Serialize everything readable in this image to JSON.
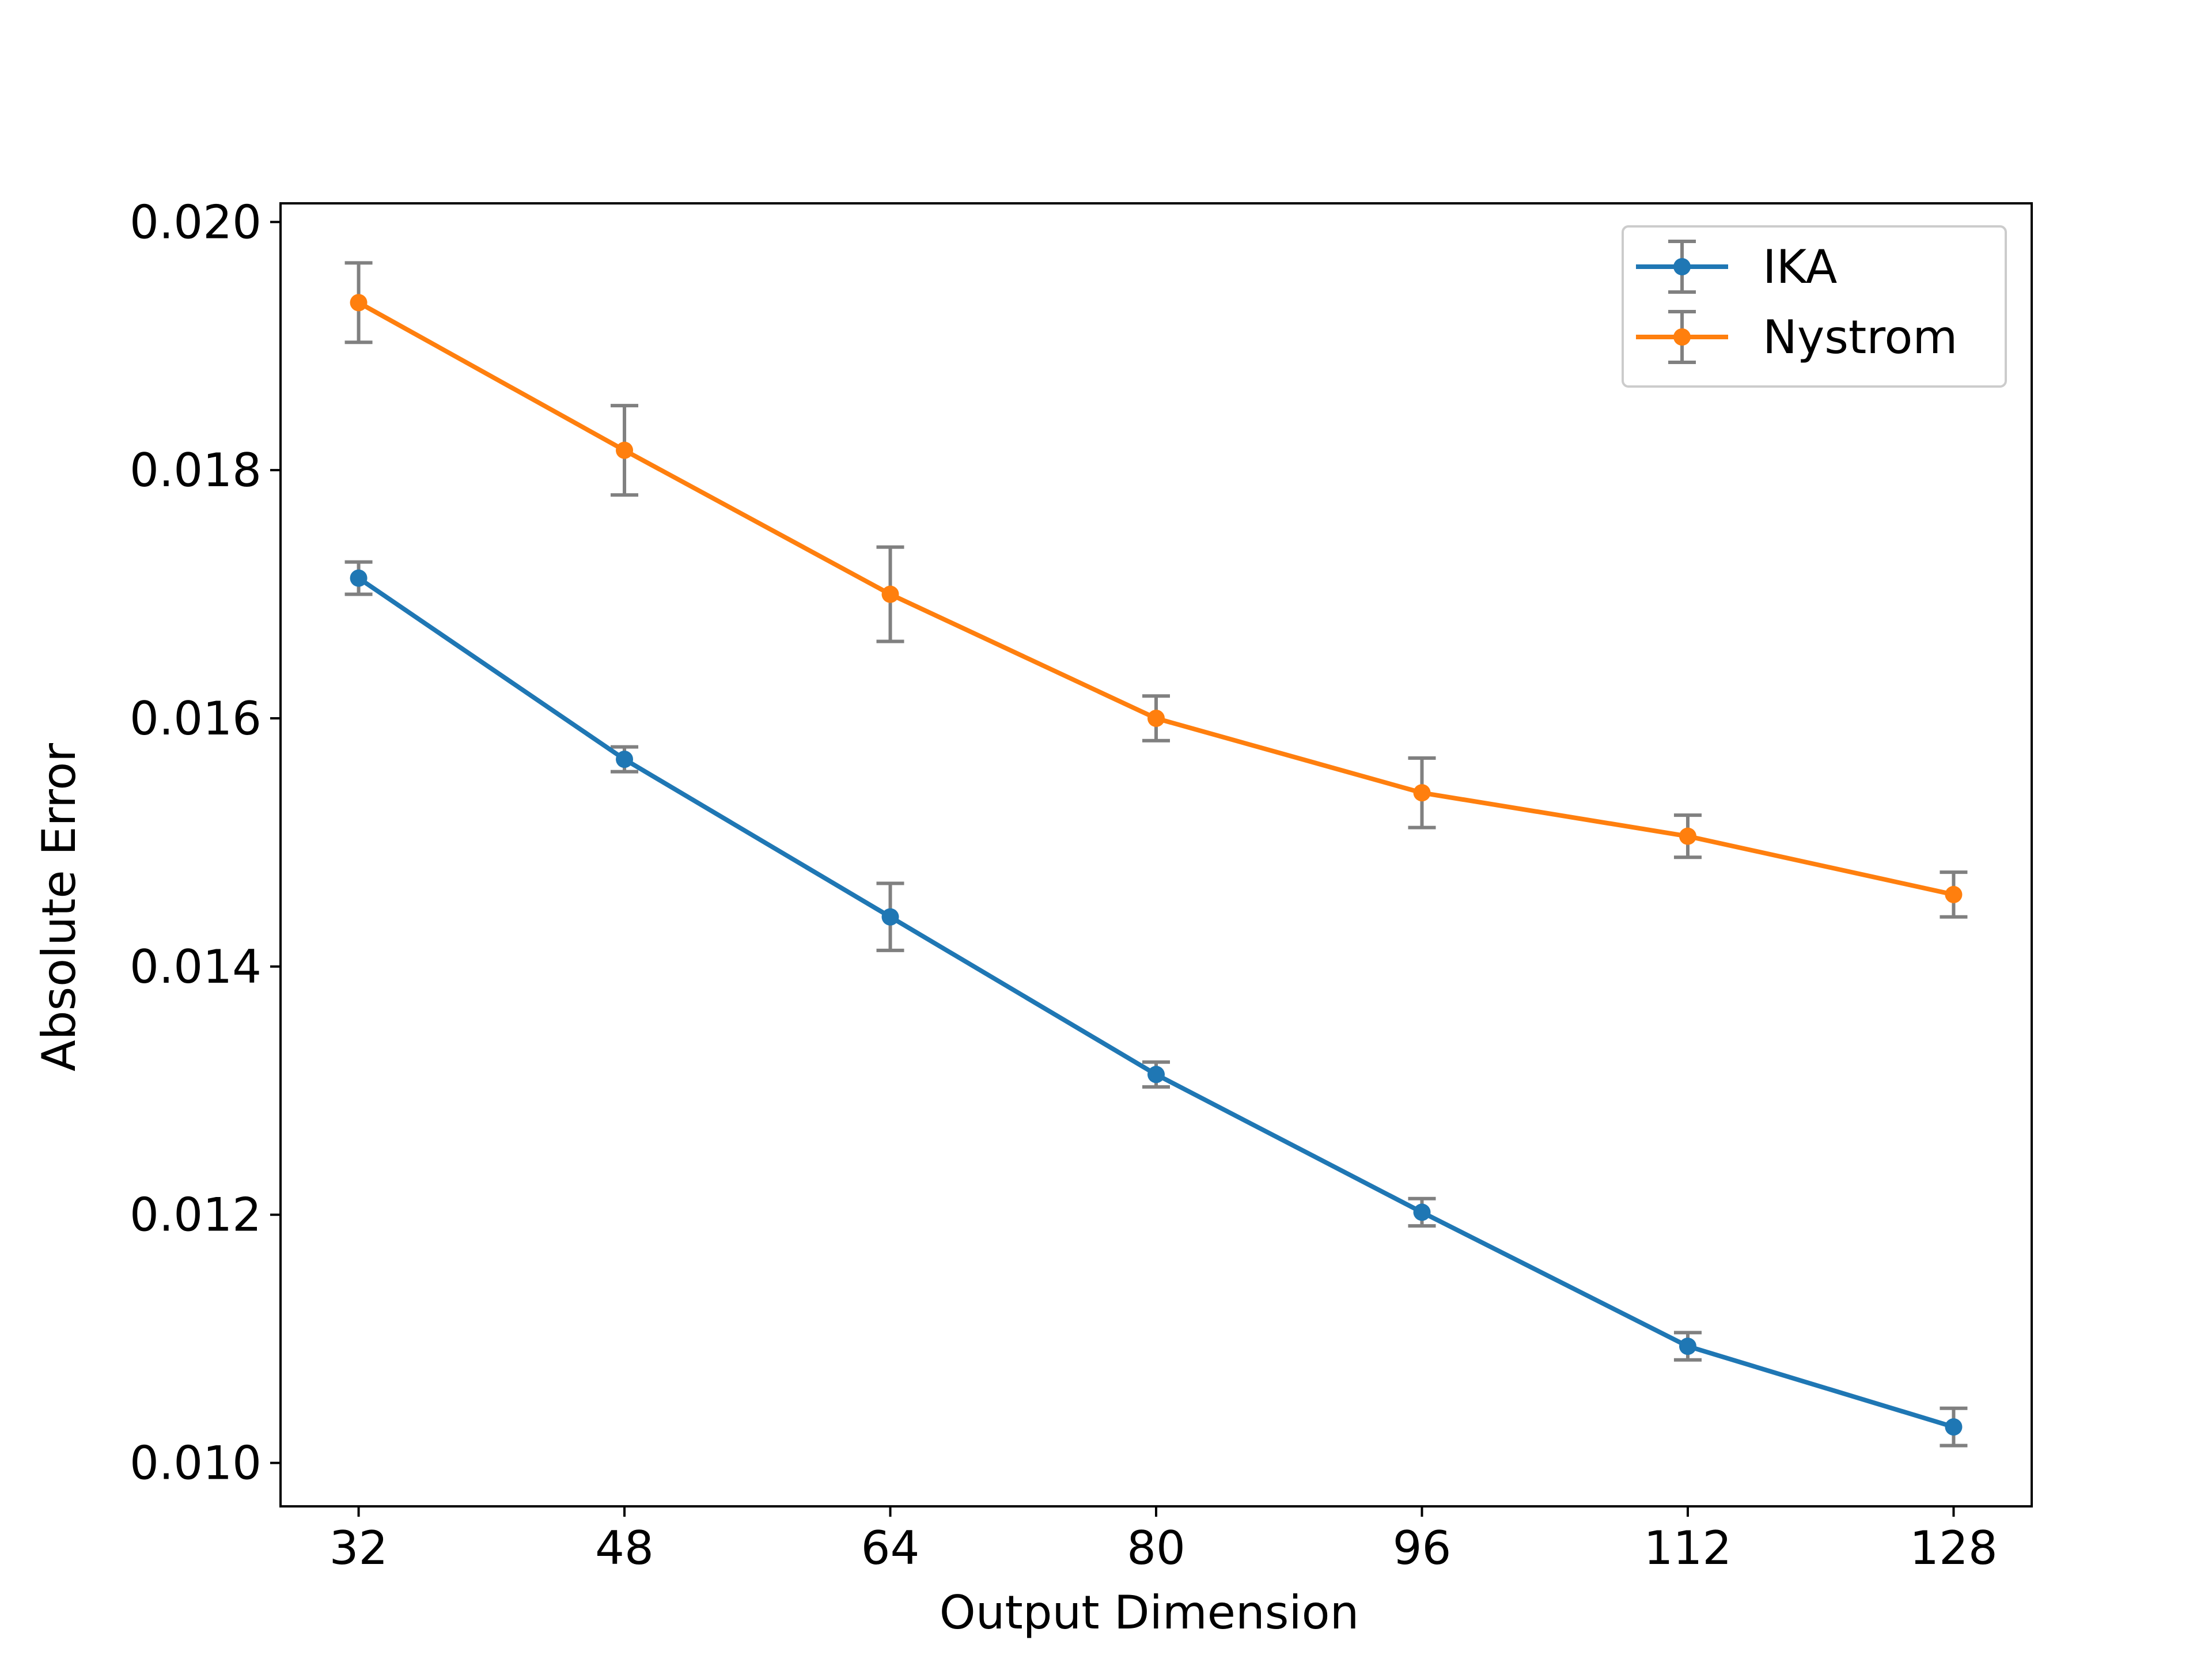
{
  "chart_data": {
    "type": "line",
    "title": "",
    "xlabel": "Output Dimension",
    "ylabel": "Absolute Error",
    "x": [
      32,
      48,
      64,
      80,
      96,
      112,
      128
    ],
    "x_tick_labels": [
      "32",
      "48",
      "64",
      "80",
      "96",
      "112",
      "128"
    ],
    "y_ticks": [
      0.01,
      0.012,
      0.014,
      0.016,
      0.018,
      0.02
    ],
    "y_tick_labels": [
      "0.010",
      "0.012",
      "0.014",
      "0.016",
      "0.018",
      "0.020"
    ],
    "xlim": [
      27.3,
      132.7
    ],
    "ylim": [
      0.00965,
      0.02015
    ],
    "grid": false,
    "legend_position": "top-right",
    "series": [
      {
        "name": "IKA",
        "color": "#1f77b4",
        "values": [
          0.01713,
          0.01567,
          0.0144,
          0.01313,
          0.01202,
          0.01094,
          0.01029
        ],
        "error": [
          0.00013,
          0.0001,
          0.00027,
          0.0001,
          0.00011,
          0.00011,
          0.00015
        ]
      },
      {
        "name": "Nystrom",
        "color": "#ff7f0e",
        "values": [
          0.01935,
          0.01816,
          0.017,
          0.016,
          0.0154,
          0.01505,
          0.01458
        ],
        "error": [
          0.00032,
          0.00036,
          0.00038,
          0.00018,
          0.00028,
          0.00017,
          0.00018
        ]
      }
    ],
    "errorbar_color": "#808080"
  }
}
